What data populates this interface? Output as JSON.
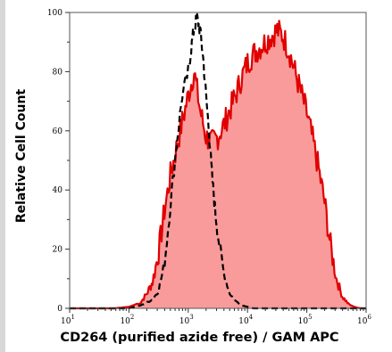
{
  "chart_data": {
    "type": "area",
    "xlabel": "CD264 (purified azide free) / GAM APC",
    "ylabel": "Relative Cell Count",
    "xscale": "log",
    "xlim": [
      10,
      1000000
    ],
    "ylim": [
      0,
      100
    ],
    "x_ticks": [
      {
        "value": 10,
        "base": "10",
        "exp": "1"
      },
      {
        "value": 100,
        "base": "10",
        "exp": "2"
      },
      {
        "value": 1000,
        "base": "10",
        "exp": "3"
      },
      {
        "value": 10000,
        "base": "10",
        "exp": "4"
      },
      {
        "value": 100000,
        "base": "10",
        "exp": "5"
      },
      {
        "value": 1000000,
        "base": "10",
        "exp": "6"
      }
    ],
    "y_ticks": [
      "0",
      "20",
      "40",
      "60",
      "80",
      "100"
    ],
    "grid": false,
    "series": [
      {
        "style": "filled red area",
        "color": "#e00000",
        "fill": "#f99b9b",
        "x": [
          10,
          56,
          100,
          158,
          200,
          251,
          316,
          398,
          501,
          631,
          794,
          1000,
          1259,
          1585,
          1995,
          2512,
          3162,
          3981,
          5012,
          6310,
          7943,
          10000,
          12589,
          15849,
          19953,
          25119,
          31623,
          39811,
          50119,
          63096,
          79433,
          100000,
          125893,
          158489,
          199526,
          251189,
          316228,
          398107,
          501187,
          630957,
          794328,
          1000000
        ],
        "y": [
          0,
          0,
          0.5,
          2,
          5,
          9,
          19,
          33,
          45,
          54,
          63,
          72,
          80,
          67,
          58,
          56,
          58,
          62,
          67,
          72,
          78,
          83,
          86,
          88,
          90,
          92,
          94,
          92,
          87,
          80,
          73,
          66,
          57,
          47,
          36,
          21,
          10,
          4,
          1.5,
          0.5,
          0,
          0
        ]
      },
      {
        "style": "black dashed line",
        "color": "#000000",
        "x": [
          10,
          100,
          158,
          200,
          251,
          316,
          398,
          501,
          631,
          794,
          1000,
          1122,
          1259,
          1413,
          1585,
          1778,
          1995,
          2239,
          2512,
          2818,
          3162,
          3981,
          5012,
          6310,
          7943,
          10000,
          12589,
          15849,
          19953,
          1000000
        ],
        "y": [
          0,
          0,
          1,
          2,
          3,
          6,
          15,
          35,
          55,
          72,
          80,
          88,
          95,
          98,
          94,
          85,
          72,
          60,
          45,
          34,
          25,
          12,
          5,
          2.5,
          1,
          0.5,
          0,
          0,
          0,
          0
        ]
      }
    ]
  }
}
